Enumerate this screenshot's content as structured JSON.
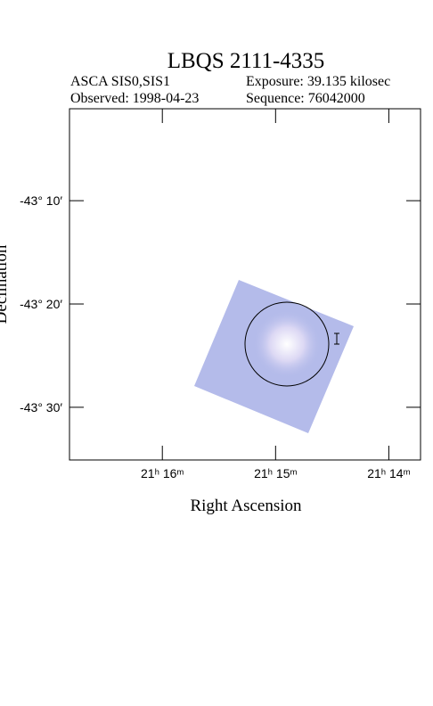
{
  "chart_data": {
    "type": "image",
    "title": "LBQS 2111-4335",
    "info": [
      "ASCA SIS0,SIS1",
      "Exposure: 39.135 kilosec",
      "Observed: 1998-04-23",
      "Sequence: 76042000"
    ],
    "xlabel": "Right Ascension",
    "ylabel": "Declination",
    "xlim": [
      16.82,
      13.72
    ],
    "xticks": [
      {
        "value": 16,
        "label": "21ʰ 16ᵐ"
      },
      {
        "value": 15,
        "label": "21ʰ 15ᵐ"
      },
      {
        "value": 14,
        "label": "21ʰ 14ᵐ"
      }
    ],
    "ylim": [
      -1.1,
      -35.1
    ],
    "yticks": [
      {
        "value": -10,
        "label": "-43° 10′"
      },
      {
        "value": -20,
        "label": "-43° 20′"
      },
      {
        "value": -30,
        "label": "-43° 30′"
      }
    ]
  }
}
